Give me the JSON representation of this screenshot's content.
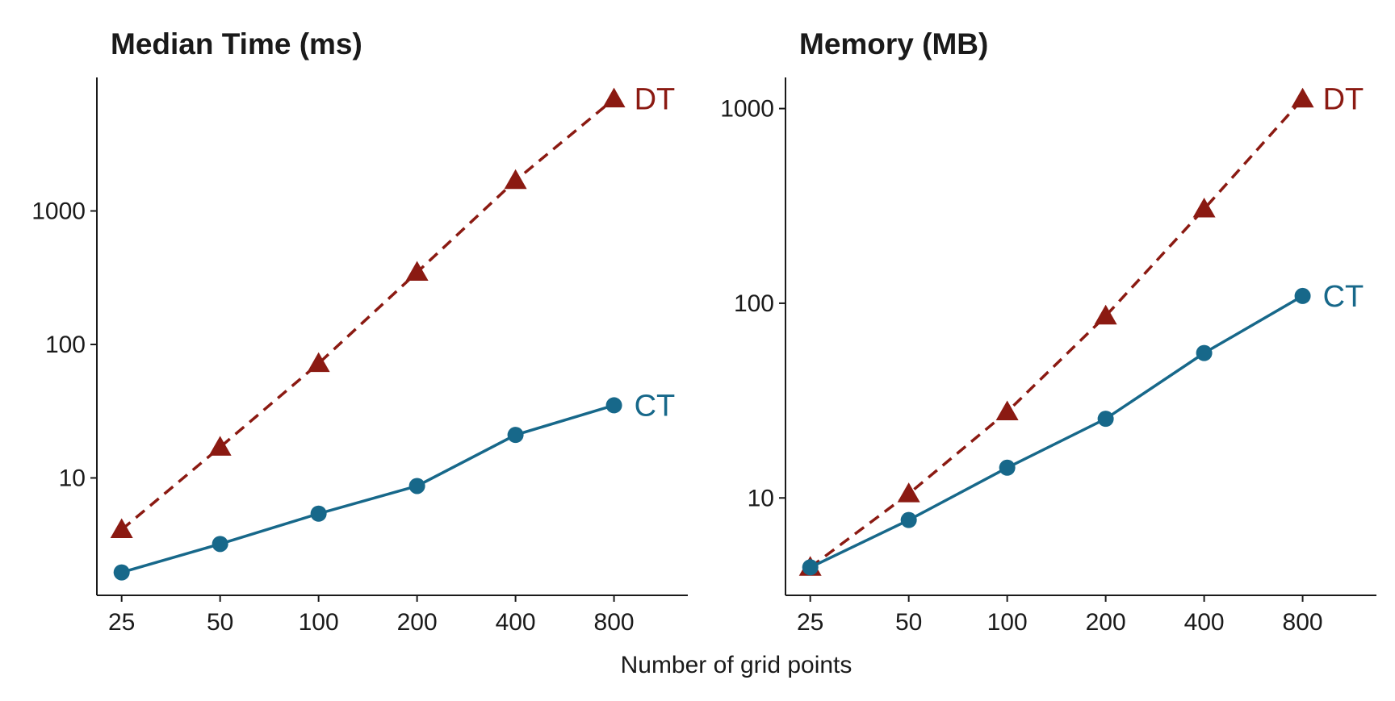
{
  "xlabel": "Number of grid points",
  "colors": {
    "DT": "#8b1a12",
    "CT": "#17688a"
  },
  "chart_data": [
    {
      "type": "line",
      "title": "Median Time (ms)",
      "xlabel": "Number of grid points",
      "ylabel": "",
      "x": [
        25,
        50,
        100,
        200,
        400,
        800
      ],
      "x_scale": "log",
      "y_scale": "log",
      "xlim": [
        21,
        1345
      ],
      "ylim": [
        1.32,
        10000
      ],
      "xticks": [
        "25",
        "50",
        "100",
        "200",
        "400",
        "800"
      ],
      "yticks": [
        {
          "value": 10,
          "label": "10"
        },
        {
          "value": 100,
          "label": "100"
        },
        {
          "value": 1000,
          "label": "1000"
        }
      ],
      "grid": false,
      "legend": "direct labels at line ends",
      "series": [
        {
          "name": "DT",
          "marker": "triangle",
          "linestyle": "dashed",
          "values": [
            4.1,
            17,
            72,
            347,
            1690,
            6900
          ]
        },
        {
          "name": "CT",
          "marker": "circle",
          "linestyle": "solid",
          "values": [
            1.96,
            3.2,
            5.4,
            8.7,
            21,
            35
          ]
        }
      ]
    },
    {
      "type": "line",
      "title": "Memory (MB)",
      "xlabel": "Number of grid points",
      "ylabel": "",
      "x": [
        25,
        50,
        100,
        200,
        400,
        800
      ],
      "x_scale": "log",
      "y_scale": "log",
      "xlim": [
        21,
        1345
      ],
      "ylim": [
        3.16,
        1445
      ],
      "xticks": [
        "25",
        "50",
        "100",
        "200",
        "400",
        "800"
      ],
      "yticks": [
        {
          "value": 10,
          "label": "10"
        },
        {
          "value": 100,
          "label": "100"
        },
        {
          "value": 1000,
          "label": "1000"
        }
      ],
      "grid": false,
      "legend": "direct labels at line ends",
      "series": [
        {
          "name": "DT",
          "marker": "triangle",
          "linestyle": "dashed",
          "values": [
            4.4,
            10.5,
            27.7,
            86,
            305,
            1120
          ]
        },
        {
          "name": "CT",
          "marker": "circle",
          "linestyle": "solid",
          "values": [
            4.4,
            7.7,
            14.3,
            25.5,
            55.5,
            109
          ]
        }
      ]
    }
  ]
}
